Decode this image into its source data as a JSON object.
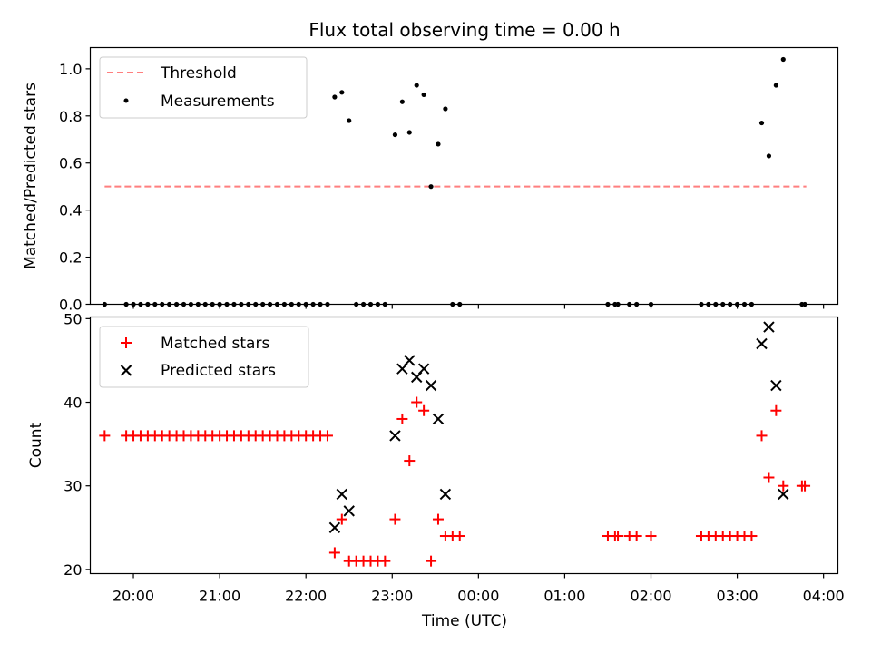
{
  "figure": {
    "title": "Flux total observing time = 0.00 h"
  },
  "chart_data": [
    {
      "type": "scatter",
      "panel": "top",
      "xlabel": "",
      "ylabel": "Matched/Predicted stars",
      "xlim": [
        "19:30",
        "04:10"
      ],
      "ylim": [
        0,
        1.09
      ],
      "yticks": [
        "0.0",
        "0.2",
        "0.4",
        "0.6",
        "0.8",
        "1.0"
      ],
      "ytick_values": [
        0,
        0.2,
        0.4,
        0.6,
        0.8,
        1.0
      ],
      "grid": false,
      "legend_position": "upper-left",
      "legend": [
        {
          "label": "Threshold",
          "marker": "dashed-line",
          "color": "#ff7f7f"
        },
        {
          "label": "Measurements",
          "marker": "dot",
          "color": "#000000"
        }
      ],
      "threshold": {
        "name": "Threshold",
        "value": 0.5,
        "x_start": "19:40",
        "x_end": "03:48",
        "color": "#ff7f7f"
      },
      "series": [
        {
          "name": "Measurements",
          "color": "#000000",
          "points": [
            [
              "19:40",
              0
            ],
            [
              "19:55",
              0
            ],
            [
              "20:00",
              0
            ],
            [
              "20:05",
              0
            ],
            [
              "20:10",
              0
            ],
            [
              "20:15",
              0
            ],
            [
              "20:20",
              0
            ],
            [
              "20:25",
              0
            ],
            [
              "20:30",
              0
            ],
            [
              "20:35",
              0
            ],
            [
              "20:40",
              0
            ],
            [
              "20:45",
              0
            ],
            [
              "20:50",
              0
            ],
            [
              "20:55",
              0
            ],
            [
              "21:00",
              0
            ],
            [
              "21:05",
              0
            ],
            [
              "21:10",
              0
            ],
            [
              "21:15",
              0
            ],
            [
              "21:20",
              0
            ],
            [
              "21:25",
              0
            ],
            [
              "21:30",
              0
            ],
            [
              "21:35",
              0
            ],
            [
              "21:40",
              0
            ],
            [
              "21:45",
              0
            ],
            [
              "21:50",
              0
            ],
            [
              "21:55",
              0
            ],
            [
              "22:00",
              0
            ],
            [
              "22:05",
              0
            ],
            [
              "22:10",
              0
            ],
            [
              "22:15",
              0
            ],
            [
              "22:20",
              0.88
            ],
            [
              "22:25",
              0.9
            ],
            [
              "22:30",
              0.78
            ],
            [
              "22:35",
              0
            ],
            [
              "22:40",
              0
            ],
            [
              "22:45",
              0
            ],
            [
              "22:50",
              0
            ],
            [
              "22:55",
              0
            ],
            [
              "23:02",
              0.72
            ],
            [
              "23:07",
              0.86
            ],
            [
              "23:12",
              0.73
            ],
            [
              "23:17",
              0.93
            ],
            [
              "23:22",
              0.89
            ],
            [
              "23:27",
              0.5
            ],
            [
              "23:32",
              0.68
            ],
            [
              "23:37",
              0.83
            ],
            [
              "23:42",
              0
            ],
            [
              "23:47",
              0
            ],
            [
              "01:30",
              0
            ],
            [
              "01:35",
              0
            ],
            [
              "01:37",
              0
            ],
            [
              "01:45",
              0
            ],
            [
              "01:50",
              0
            ],
            [
              "02:00",
              0
            ],
            [
              "02:35",
              0
            ],
            [
              "02:40",
              0
            ],
            [
              "02:45",
              0
            ],
            [
              "02:50",
              0
            ],
            [
              "02:55",
              0
            ],
            [
              "03:00",
              0
            ],
            [
              "03:05",
              0
            ],
            [
              "03:10",
              0
            ],
            [
              "03:17",
              0.77
            ],
            [
              "03:22",
              0.63
            ],
            [
              "03:27",
              0.93
            ],
            [
              "03:32",
              1.04
            ],
            [
              "03:45",
              0
            ],
            [
              "03:47",
              0
            ]
          ]
        }
      ]
    },
    {
      "type": "scatter",
      "panel": "bottom",
      "xlabel": "Time (UTC)",
      "ylabel": "Count",
      "xlim": [
        "19:30",
        "04:10"
      ],
      "ylim": [
        19.5,
        50.2
      ],
      "xticks": [
        "20:00",
        "21:00",
        "22:00",
        "23:00",
        "00:00",
        "01:00",
        "02:00",
        "03:00",
        "04:00"
      ],
      "yticks": [
        "20",
        "30",
        "40",
        "50"
      ],
      "ytick_values": [
        20,
        30,
        40,
        50
      ],
      "grid": false,
      "legend_position": "upper-left",
      "legend": [
        {
          "label": "Matched stars",
          "marker": "plus",
          "color": "#ff0000"
        },
        {
          "label": "Predicted stars",
          "marker": "x",
          "color": "#000000"
        }
      ],
      "series": [
        {
          "name": "Matched stars",
          "color": "#ff0000",
          "marker": "plus",
          "points": [
            [
              "19:40",
              36
            ],
            [
              "19:55",
              36
            ],
            [
              "20:00",
              36
            ],
            [
              "20:05",
              36
            ],
            [
              "20:10",
              36
            ],
            [
              "20:15",
              36
            ],
            [
              "20:20",
              36
            ],
            [
              "20:25",
              36
            ],
            [
              "20:30",
              36
            ],
            [
              "20:35",
              36
            ],
            [
              "20:40",
              36
            ],
            [
              "20:45",
              36
            ],
            [
              "20:50",
              36
            ],
            [
              "20:55",
              36
            ],
            [
              "21:00",
              36
            ],
            [
              "21:05",
              36
            ],
            [
              "21:10",
              36
            ],
            [
              "21:15",
              36
            ],
            [
              "21:20",
              36
            ],
            [
              "21:25",
              36
            ],
            [
              "21:30",
              36
            ],
            [
              "21:35",
              36
            ],
            [
              "21:40",
              36
            ],
            [
              "21:45",
              36
            ],
            [
              "21:50",
              36
            ],
            [
              "21:55",
              36
            ],
            [
              "22:00",
              36
            ],
            [
              "22:05",
              36
            ],
            [
              "22:10",
              36
            ],
            [
              "22:15",
              36
            ],
            [
              "22:20",
              22
            ],
            [
              "22:25",
              26
            ],
            [
              "22:30",
              21
            ],
            [
              "22:35",
              21
            ],
            [
              "22:40",
              21
            ],
            [
              "22:45",
              21
            ],
            [
              "22:50",
              21
            ],
            [
              "22:55",
              21
            ],
            [
              "23:02",
              26
            ],
            [
              "23:07",
              38
            ],
            [
              "23:12",
              33
            ],
            [
              "23:17",
              40
            ],
            [
              "23:22",
              39
            ],
            [
              "23:27",
              21
            ],
            [
              "23:32",
              26
            ],
            [
              "23:37",
              24
            ],
            [
              "23:42",
              24
            ],
            [
              "23:47",
              24
            ],
            [
              "01:30",
              24
            ],
            [
              "01:35",
              24
            ],
            [
              "01:37",
              24
            ],
            [
              "01:45",
              24
            ],
            [
              "01:50",
              24
            ],
            [
              "02:00",
              24
            ],
            [
              "02:35",
              24
            ],
            [
              "02:40",
              24
            ],
            [
              "02:45",
              24
            ],
            [
              "02:50",
              24
            ],
            [
              "02:55",
              24
            ],
            [
              "03:00",
              24
            ],
            [
              "03:05",
              24
            ],
            [
              "03:10",
              24
            ],
            [
              "03:17",
              36
            ],
            [
              "03:22",
              31
            ],
            [
              "03:27",
              39
            ],
            [
              "03:32",
              30
            ],
            [
              "03:45",
              30
            ],
            [
              "03:47",
              30
            ]
          ]
        },
        {
          "name": "Predicted stars",
          "color": "#000000",
          "marker": "x",
          "points": [
            [
              "22:20",
              25
            ],
            [
              "22:25",
              29
            ],
            [
              "22:30",
              27
            ],
            [
              "23:02",
              36
            ],
            [
              "23:07",
              44
            ],
            [
              "23:12",
              45
            ],
            [
              "23:17",
              43
            ],
            [
              "23:22",
              44
            ],
            [
              "23:27",
              42
            ],
            [
              "23:32",
              38
            ],
            [
              "23:37",
              29
            ],
            [
              "03:17",
              47
            ],
            [
              "03:22",
              49
            ],
            [
              "03:27",
              42
            ],
            [
              "03:32",
              29
            ]
          ]
        }
      ]
    }
  ]
}
